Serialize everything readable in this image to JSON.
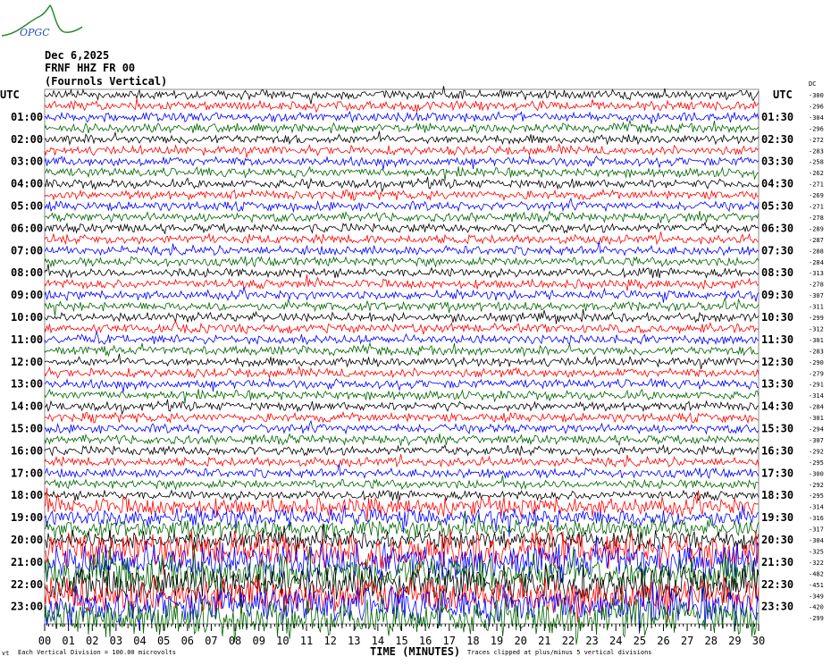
{
  "logo_text": "OPGC",
  "header": {
    "date": "Dec 6,2025",
    "station": "FRNF HHZ FR 00",
    "name": "(Fournols Vertical)"
  },
  "chart_data": {
    "type": "line",
    "title": "FRNF HHZ FR 00",
    "left_header": "UTC",
    "right_header": "UTC",
    "dc_header": "DC",
    "left_labels": [
      "01:00",
      "02:00",
      "03:00",
      "04:00",
      "05:00",
      "06:00",
      "07:00",
      "08:00",
      "09:00",
      "10:00",
      "11:00",
      "12:00",
      "13:00",
      "14:00",
      "15:00",
      "16:00",
      "17:00",
      "18:00",
      "19:00",
      "20:00",
      "21:00",
      "22:00",
      "23:00"
    ],
    "right_labels": [
      "01:30",
      "02:30",
      "03:30",
      "04:30",
      "05:30",
      "06:30",
      "07:30",
      "08:30",
      "09:30",
      "10:30",
      "11:30",
      "12:30",
      "13:30",
      "14:30",
      "15:30",
      "16:30",
      "17:30",
      "18:30",
      "19:30",
      "20:30",
      "21:30",
      "22:30",
      "23:30"
    ],
    "dc_offsets": [
      "-300",
      "-296",
      "-304",
      "-296",
      "-272",
      "-283",
      "-258",
      "-262",
      "-271",
      "-269",
      "-271",
      "-278",
      "-289",
      "-287",
      "-288",
      "-284",
      "-313",
      "-278",
      "-307",
      "-311",
      "-299",
      "-312",
      "-301",
      "-283",
      "-290",
      "-279",
      "-291",
      "-314",
      "-284",
      "-301",
      "-294",
      "-307",
      "-292",
      "-295",
      "-300",
      "-292",
      "-295",
      "-314",
      "-316",
      "-317",
      "-304",
      "-325",
      "-322",
      "-482",
      "-451",
      "-349",
      "-420",
      "-299"
    ],
    "trace_colors": [
      "#000000",
      "#ff0000",
      "#0000ff",
      "#006400"
    ],
    "x_ticks": [
      "00",
      "01",
      "02",
      "03",
      "04",
      "05",
      "06",
      "07",
      "08",
      "09",
      "10",
      "11",
      "12",
      "13",
      "14",
      "15",
      "16",
      "17",
      "18",
      "19",
      "20",
      "21",
      "22",
      "23",
      "24",
      "25",
      "26",
      "27",
      "28",
      "29",
      "30"
    ],
    "xlabel": "TIME (MINUTES)",
    "xlim": [
      0,
      30
    ],
    "footer_left": "Each Vertical Division =  100.00 microvolts",
    "footer_right": "Traces clipped at plus/minus 5 vertical divisions",
    "corner_mark": "vt"
  }
}
